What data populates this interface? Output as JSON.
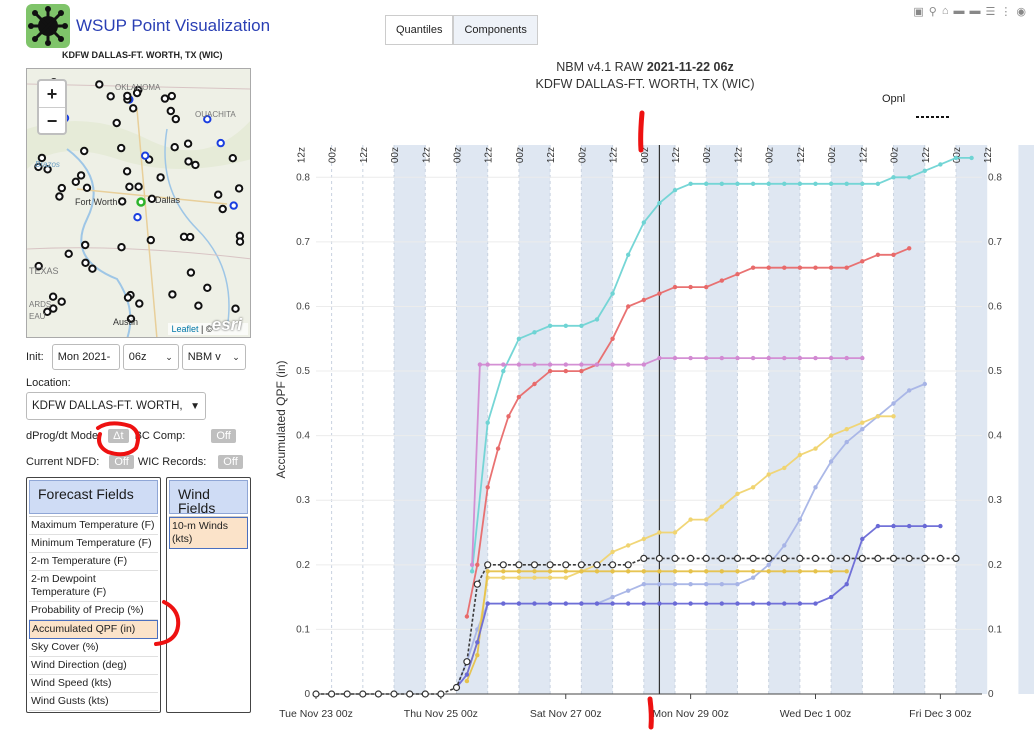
{
  "app": {
    "title": "WSUP Point Visualization",
    "station_caption": "KDFW DALLAS-FT. WORTH, TX (WIC)"
  },
  "map": {
    "zoom_in": "+",
    "zoom_out": "−",
    "labels": [
      "OKLAHOMA",
      "OUACHITA",
      "Brazos",
      "Fort Worth",
      "Dallas",
      "TEXAS",
      "ARDS",
      "EAU",
      "Austin"
    ],
    "attribution_leaflet": "Leaflet",
    "attribution_sep": "| ©",
    "esri": "esri"
  },
  "controls": {
    "init_label": "Init:",
    "init_date": "Mon 2021-",
    "init_hour": "06z",
    "model": "NBM v",
    "location_label": "Location:",
    "location_value": "KDFW DALLAS-FT. WORTH,",
    "dprog_label": "dProg/dt Mode",
    "dprog_toggle": "Δt",
    "bc_label": "BC Comp:",
    "bc_toggle": "Off",
    "ndfd_label": "Current NDFD:",
    "ndfd_toggle": "Off",
    "wic_label": "WIC Records:",
    "wic_toggle": "Off"
  },
  "forecast_fields": {
    "header": "Forecast Fields",
    "items": [
      "Maximum Temperature (F)",
      "Minimum Temperature (F)",
      "2-m Temperature (F)",
      "2-m Dewpoint Temperature (F)",
      "Probability of Precip (%)",
      "Accumulated QPF (in)",
      "Sky Cover (%)",
      "Wind Direction (deg)",
      "Wind Speed (kts)",
      "Wind Gusts (kts)"
    ],
    "selected_index": 5
  },
  "wind_fields": {
    "header": "Wind Fields",
    "items": [
      "10-m Winds (kts)"
    ],
    "selected_index": 0
  },
  "tabs": [
    "Quantiles",
    "Components"
  ],
  "toolbar_icons": [
    "autoscale-icon",
    "zoom-icon",
    "home-icon",
    "pan-icon",
    "spike-icon",
    "compare-icon",
    "settings-icon",
    "camera-icon"
  ],
  "chart_data": {
    "type": "line",
    "title_prefix": "NBM v4.1 RAW",
    "title_bold": "2021-11-22 06z",
    "subtitle": "KDFW DALLAS-FT. WORTH, TX (WIC)",
    "ylabel": "Accumulated QPF (in)",
    "ylim": [
      0,
      0.85
    ],
    "yticks": [
      0,
      0.1,
      0.2,
      0.3,
      0.4,
      0.5,
      0.6,
      0.7,
      0.8
    ],
    "xlim": [
      0,
      256
    ],
    "x_unit": "hours after Tue Nov 23 00z",
    "xtick_labels": [
      {
        "x": 0,
        "label": "Tue Nov 23 00z"
      },
      {
        "x": 48,
        "label": "Thu Nov 25 00z"
      },
      {
        "x": 96,
        "label": "Sat Nov 27 00z"
      },
      {
        "x": 144,
        "label": "Mon Nov 29 00z"
      },
      {
        "x": 192,
        "label": "Wed Dec  1 00z"
      },
      {
        "x": 240,
        "label": "Fri Dec  3 00z"
      }
    ],
    "top_hour_labels": [
      "12z",
      "00z",
      "12z",
      "00z",
      "12z",
      "00z",
      "12z",
      "00z",
      "12z",
      "00z",
      "12z",
      "00z",
      "12z",
      "00z",
      "12z",
      "00z",
      "12z",
      "00z",
      "12z",
      "00z",
      "12z",
      "00z",
      "12z"
    ],
    "current_time_x": 132,
    "legend": {
      "name": "Opnl",
      "position": "top-right"
    },
    "series": [
      {
        "color": "#6fd4d4",
        "points": [
          [
            60,
            0.19
          ],
          [
            66,
            0.42
          ],
          [
            72,
            0.5
          ],
          [
            78,
            0.55
          ],
          [
            84,
            0.56
          ],
          [
            90,
            0.57
          ],
          [
            96,
            0.57
          ],
          [
            102,
            0.57
          ],
          [
            108,
            0.58
          ],
          [
            114,
            0.62
          ],
          [
            120,
            0.68
          ],
          [
            126,
            0.73
          ],
          [
            132,
            0.76
          ],
          [
            138,
            0.78
          ],
          [
            144,
            0.79
          ],
          [
            150,
            0.79
          ],
          [
            156,
            0.79
          ],
          [
            162,
            0.79
          ],
          [
            168,
            0.79
          ],
          [
            174,
            0.79
          ],
          [
            180,
            0.79
          ],
          [
            186,
            0.79
          ],
          [
            192,
            0.79
          ],
          [
            198,
            0.79
          ],
          [
            204,
            0.79
          ],
          [
            210,
            0.79
          ],
          [
            216,
            0.79
          ],
          [
            222,
            0.8
          ],
          [
            228,
            0.8
          ],
          [
            234,
            0.81
          ],
          [
            240,
            0.82
          ],
          [
            246,
            0.83
          ],
          [
            252,
            0.83
          ]
        ]
      },
      {
        "color": "#e86a6a",
        "points": [
          [
            58,
            0.12
          ],
          [
            62,
            0.2
          ],
          [
            66,
            0.32
          ],
          [
            70,
            0.38
          ],
          [
            74,
            0.43
          ],
          [
            78,
            0.46
          ],
          [
            84,
            0.48
          ],
          [
            90,
            0.5
          ],
          [
            96,
            0.5
          ],
          [
            102,
            0.5
          ],
          [
            108,
            0.51
          ],
          [
            114,
            0.55
          ],
          [
            120,
            0.6
          ],
          [
            126,
            0.61
          ],
          [
            132,
            0.62
          ],
          [
            138,
            0.63
          ],
          [
            144,
            0.63
          ],
          [
            150,
            0.63
          ],
          [
            156,
            0.64
          ],
          [
            162,
            0.65
          ],
          [
            168,
            0.66
          ],
          [
            174,
            0.66
          ],
          [
            180,
            0.66
          ],
          [
            186,
            0.66
          ],
          [
            192,
            0.66
          ],
          [
            198,
            0.66
          ],
          [
            204,
            0.66
          ],
          [
            210,
            0.67
          ],
          [
            216,
            0.68
          ],
          [
            222,
            0.68
          ],
          [
            228,
            0.69
          ]
        ]
      },
      {
        "color": "#d28ad2",
        "points": [
          [
            60,
            0.2
          ],
          [
            63,
            0.51
          ],
          [
            66,
            0.51
          ],
          [
            72,
            0.51
          ],
          [
            78,
            0.51
          ],
          [
            84,
            0.51
          ],
          [
            90,
            0.51
          ],
          [
            96,
            0.51
          ],
          [
            102,
            0.51
          ],
          [
            108,
            0.51
          ],
          [
            114,
            0.51
          ],
          [
            120,
            0.51
          ],
          [
            126,
            0.51
          ],
          [
            132,
            0.52
          ],
          [
            138,
            0.52
          ],
          [
            144,
            0.52
          ],
          [
            150,
            0.52
          ],
          [
            156,
            0.52
          ],
          [
            162,
            0.52
          ],
          [
            168,
            0.52
          ],
          [
            174,
            0.52
          ],
          [
            180,
            0.52
          ],
          [
            186,
            0.52
          ],
          [
            192,
            0.52
          ],
          [
            198,
            0.52
          ],
          [
            204,
            0.52
          ],
          [
            210,
            0.52
          ]
        ]
      },
      {
        "color": "#a7b4e6",
        "points": [
          [
            54,
            0.01
          ],
          [
            58,
            0.05
          ],
          [
            62,
            0.1
          ],
          [
            66,
            0.14
          ],
          [
            72,
            0.14
          ],
          [
            78,
            0.14
          ],
          [
            84,
            0.14
          ],
          [
            90,
            0.14
          ],
          [
            96,
            0.14
          ],
          [
            102,
            0.14
          ],
          [
            108,
            0.14
          ],
          [
            114,
            0.15
          ],
          [
            120,
            0.16
          ],
          [
            126,
            0.17
          ],
          [
            132,
            0.17
          ],
          [
            138,
            0.17
          ],
          [
            144,
            0.17
          ],
          [
            150,
            0.17
          ],
          [
            156,
            0.17
          ],
          [
            162,
            0.17
          ],
          [
            168,
            0.18
          ],
          [
            174,
            0.2
          ],
          [
            180,
            0.23
          ],
          [
            186,
            0.27
          ],
          [
            192,
            0.32
          ],
          [
            198,
            0.36
          ],
          [
            204,
            0.39
          ],
          [
            210,
            0.41
          ],
          [
            216,
            0.43
          ],
          [
            222,
            0.45
          ],
          [
            228,
            0.47
          ],
          [
            234,
            0.48
          ]
        ]
      },
      {
        "color": "#f0d470",
        "points": [
          [
            58,
            0.03
          ],
          [
            62,
            0.08
          ],
          [
            66,
            0.18
          ],
          [
            72,
            0.18
          ],
          [
            78,
            0.18
          ],
          [
            84,
            0.18
          ],
          [
            90,
            0.18
          ],
          [
            96,
            0.18
          ],
          [
            102,
            0.19
          ],
          [
            108,
            0.2
          ],
          [
            114,
            0.22
          ],
          [
            120,
            0.23
          ],
          [
            126,
            0.24
          ],
          [
            132,
            0.25
          ],
          [
            138,
            0.25
          ],
          [
            144,
            0.27
          ],
          [
            150,
            0.27
          ],
          [
            156,
            0.29
          ],
          [
            162,
            0.31
          ],
          [
            168,
            0.32
          ],
          [
            174,
            0.34
          ],
          [
            180,
            0.35
          ],
          [
            186,
            0.37
          ],
          [
            192,
            0.38
          ],
          [
            198,
            0.4
          ],
          [
            204,
            0.41
          ],
          [
            210,
            0.42
          ],
          [
            216,
            0.43
          ],
          [
            222,
            0.43
          ]
        ]
      },
      {
        "color": "#e6c24a",
        "points": [
          [
            58,
            0.02
          ],
          [
            62,
            0.06
          ],
          [
            66,
            0.19
          ],
          [
            72,
            0.19
          ],
          [
            78,
            0.19
          ],
          [
            84,
            0.19
          ],
          [
            90,
            0.19
          ],
          [
            96,
            0.19
          ],
          [
            102,
            0.19
          ],
          [
            108,
            0.19
          ],
          [
            114,
            0.19
          ],
          [
            120,
            0.19
          ],
          [
            126,
            0.19
          ],
          [
            132,
            0.19
          ],
          [
            138,
            0.19
          ],
          [
            144,
            0.19
          ],
          [
            150,
            0.19
          ],
          [
            156,
            0.19
          ],
          [
            162,
            0.19
          ],
          [
            168,
            0.19
          ],
          [
            174,
            0.19
          ],
          [
            180,
            0.19
          ],
          [
            186,
            0.19
          ],
          [
            192,
            0.19
          ],
          [
            198,
            0.19
          ],
          [
            204,
            0.19
          ]
        ]
      },
      {
        "color": "#6a6ad6",
        "points": [
          [
            54,
            0.01
          ],
          [
            58,
            0.03
          ],
          [
            62,
            0.08
          ],
          [
            66,
            0.14
          ],
          [
            72,
            0.14
          ],
          [
            78,
            0.14
          ],
          [
            84,
            0.14
          ],
          [
            90,
            0.14
          ],
          [
            96,
            0.14
          ],
          [
            102,
            0.14
          ],
          [
            108,
            0.14
          ],
          [
            114,
            0.14
          ],
          [
            120,
            0.14
          ],
          [
            126,
            0.14
          ],
          [
            132,
            0.14
          ],
          [
            138,
            0.14
          ],
          [
            144,
            0.14
          ],
          [
            150,
            0.14
          ],
          [
            156,
            0.14
          ],
          [
            162,
            0.14
          ],
          [
            168,
            0.14
          ],
          [
            174,
            0.14
          ],
          [
            180,
            0.14
          ],
          [
            186,
            0.14
          ],
          [
            192,
            0.14
          ],
          [
            198,
            0.15
          ],
          [
            204,
            0.17
          ],
          [
            210,
            0.24
          ],
          [
            216,
            0.26
          ],
          [
            222,
            0.26
          ],
          [
            228,
            0.26
          ],
          [
            234,
            0.26
          ],
          [
            240,
            0.26
          ]
        ]
      },
      {
        "color": "#333333",
        "dashed": true,
        "open_markers": true,
        "points": [
          [
            0,
            0
          ],
          [
            6,
            0
          ],
          [
            12,
            0
          ],
          [
            18,
            0
          ],
          [
            24,
            0
          ],
          [
            30,
            0
          ],
          [
            36,
            0
          ],
          [
            42,
            0
          ],
          [
            48,
            0
          ],
          [
            54,
            0.01
          ],
          [
            58,
            0.05
          ],
          [
            62,
            0.17
          ],
          [
            66,
            0.2
          ],
          [
            72,
            0.2
          ],
          [
            78,
            0.2
          ],
          [
            84,
            0.2
          ],
          [
            90,
            0.2
          ],
          [
            96,
            0.2
          ],
          [
            102,
            0.2
          ],
          [
            108,
            0.2
          ],
          [
            114,
            0.2
          ],
          [
            120,
            0.2
          ],
          [
            126,
            0.21
          ],
          [
            132,
            0.21
          ],
          [
            138,
            0.21
          ],
          [
            144,
            0.21
          ],
          [
            150,
            0.21
          ],
          [
            156,
            0.21
          ],
          [
            162,
            0.21
          ],
          [
            168,
            0.21
          ],
          [
            174,
            0.21
          ],
          [
            180,
            0.21
          ],
          [
            186,
            0.21
          ],
          [
            192,
            0.21
          ],
          [
            198,
            0.21
          ],
          [
            204,
            0.21
          ],
          [
            210,
            0.21
          ],
          [
            216,
            0.21
          ],
          [
            222,
            0.21
          ],
          [
            228,
            0.21
          ],
          [
            234,
            0.21
          ],
          [
            240,
            0.21
          ],
          [
            246,
            0.21
          ]
        ]
      }
    ]
  }
}
